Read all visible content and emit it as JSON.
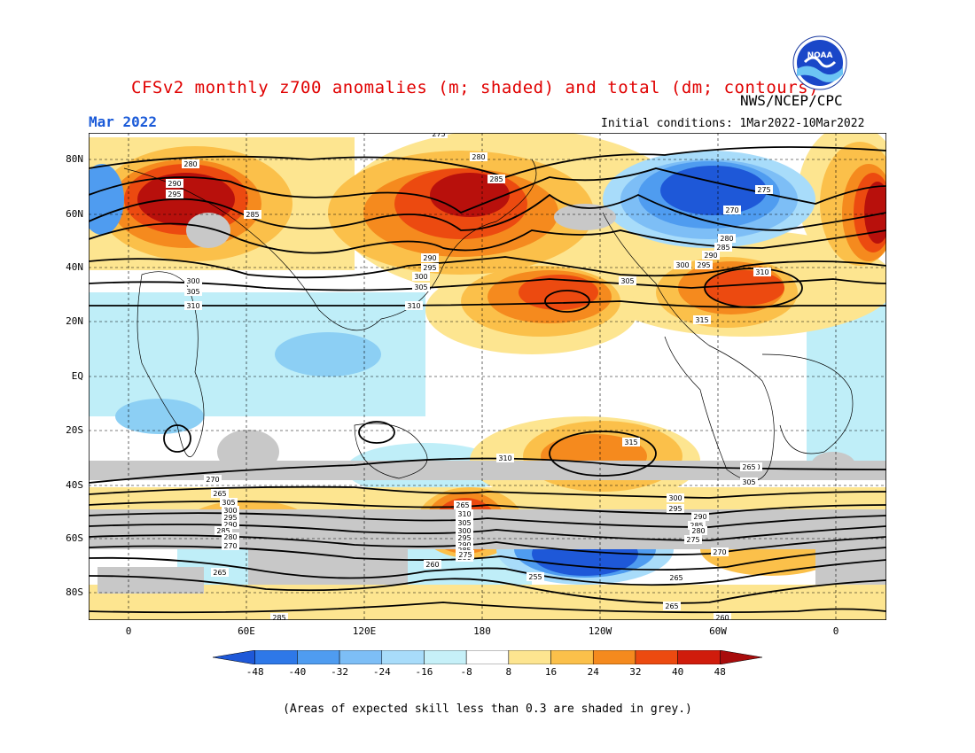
{
  "title": "CFSv2 monthly z700 anomalies (m; shaded) and total (dm; contours)",
  "org": "NWS/NCEP/CPC",
  "logo_text": "NOAA",
  "date_label": "Mar 2022",
  "initial_conditions": "Initial conditions: 1Mar2022-10Mar2022",
  "y_axis_labels": [
    "80N",
    "60N",
    "40N",
    "20N",
    "EQ",
    "20S",
    "40S",
    "60S",
    "80S"
  ],
  "x_axis_labels": [
    "0",
    "60E",
    "120E",
    "180",
    "120W",
    "60W",
    "0"
  ],
  "colorbar": {
    "ticks": [
      "-48",
      "-40",
      "-32",
      "-24",
      "-16",
      "-8",
      "8",
      "16",
      "24",
      "32",
      "40",
      "48"
    ],
    "colors": [
      "#1e58d8",
      "#2e78e8",
      "#4f9cf0",
      "#7dbef6",
      "#a8dcfa",
      "#c6f0f8",
      "#ffffff",
      "#fde590",
      "#fbc04a",
      "#f58a1e",
      "#ec4a10",
      "#d01c0c",
      "#a80c0c"
    ]
  },
  "footnote": "(Areas of expected skill less than 0.3 are shaded in grey.)",
  "contour_labels": [
    "275",
    "280",
    "290",
    "295",
    "285",
    "300",
    "305",
    "310",
    "280",
    "285",
    "290",
    "295",
    "300",
    "305",
    "310",
    "275",
    "270",
    "280",
    "285",
    "290",
    "295",
    "300",
    "305",
    "310",
    "315",
    "315",
    "310",
    "310",
    "305",
    "300",
    "295",
    "290",
    "285",
    "280",
    "275",
    "270",
    "265",
    "260",
    "255",
    "265",
    "260",
    "265",
    "285",
    "265",
    "305",
    "300",
    "295",
    "290",
    "285",
    "280",
    "270",
    "265",
    "310",
    "305",
    "300",
    "295",
    "290",
    "285",
    "280",
    "275",
    "270",
    "265",
    "260"
  ]
}
